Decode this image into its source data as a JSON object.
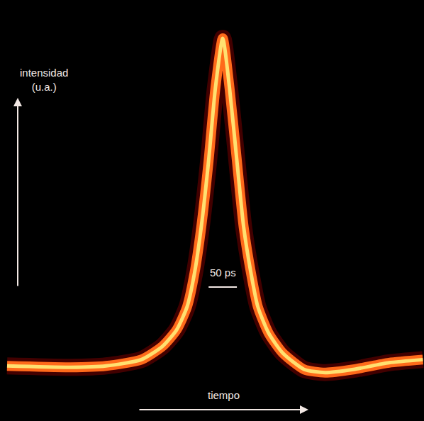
{
  "chart_data": {
    "type": "line",
    "y_label": "intensidad (u.a.)",
    "x_label": "tiempo",
    "x": [
      12.5,
      125,
      187.5,
      250,
      287.5,
      312.5,
      331,
      344,
      356,
      369,
      381,
      394,
      406,
      419,
      431,
      444,
      456,
      475,
      500,
      538,
      575,
      625,
      688,
      748
    ],
    "values": [
      5.7,
      5.3,
      5.7,
      7.5,
      11.3,
      16.0,
      22.6,
      32.1,
      45.3,
      64.2,
      84.9,
      99.1,
      84.9,
      64.2,
      45.3,
      32.1,
      22.6,
      15.1,
      9.4,
      4.7,
      3.8,
      4.7,
      6.6,
      7.5
    ],
    "color": "#ff6a1a",
    "xlim": [
      0,
      750
    ],
    "ylim": [
      -10,
      110
    ],
    "xticks": [],
    "yticks": [],
    "tick_labels": false,
    "grid": false,
    "scale_bar": {
      "label": "50 ps",
      "length": 50
    }
  }
}
